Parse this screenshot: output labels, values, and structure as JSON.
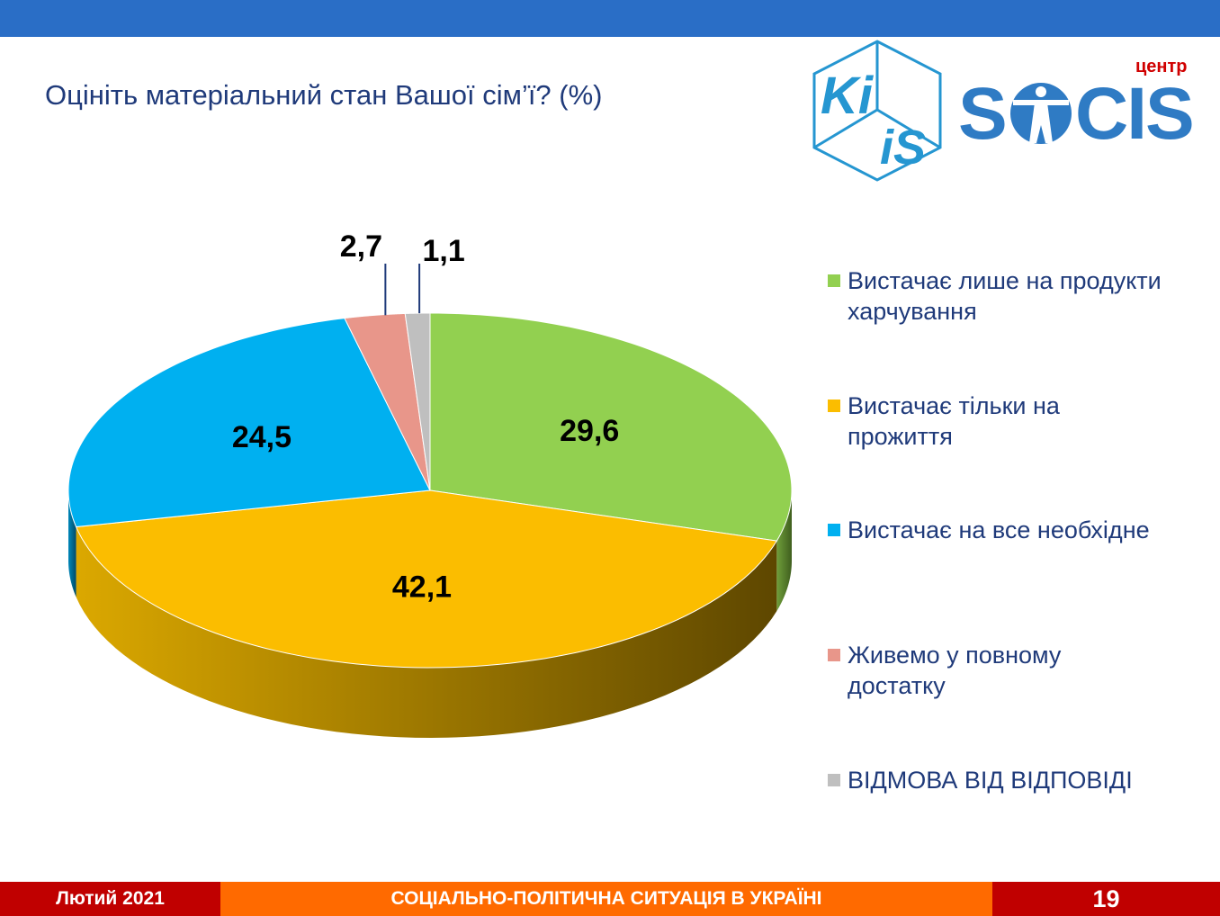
{
  "header": {
    "title": "Оцініть матеріальний стан Вашої сім’ї? (%)"
  },
  "logo": {
    "kiis": "Ki iS",
    "socis": "SOCIS",
    "socis_prefix": "центр"
  },
  "chart_data": {
    "type": "pie",
    "title": "Оцініть матеріальний стан Вашої сім’ї? (%)",
    "categories": [
      "Вистачає лише на продукти харчування",
      "Вистачає тільки на прожиття",
      "Вистачає на все необхідне",
      "Живемо у повному достатку",
      "ВІДМОВА ВІД ВІДПОВІДІ"
    ],
    "values": [
      29.6,
      42.1,
      24.5,
      2.7,
      1.1
    ],
    "labels": [
      "29,6",
      "42,1",
      "24,5",
      "2,7",
      "1,1"
    ],
    "colors": [
      "#92d050",
      "#fbbd00",
      "#00b0f0",
      "#e8968a",
      "#bfbfbf"
    ],
    "side_colors": [
      [
        "#6f9e3a",
        "#3f5e1e"
      ],
      [
        "#dba800",
        "#5e4700"
      ],
      [
        "#0088bb",
        "#004a66"
      ],
      [
        "#b86a60",
        "#7a443c"
      ],
      [
        "#999999",
        "#666666"
      ]
    ],
    "legend": "right"
  },
  "footer": {
    "date": "Лютий 2021",
    "title": "СОЦІАЛЬНО-ПОЛІТИЧНА СИТУАЦІЯ В УКРАЇНІ",
    "page": "19"
  }
}
